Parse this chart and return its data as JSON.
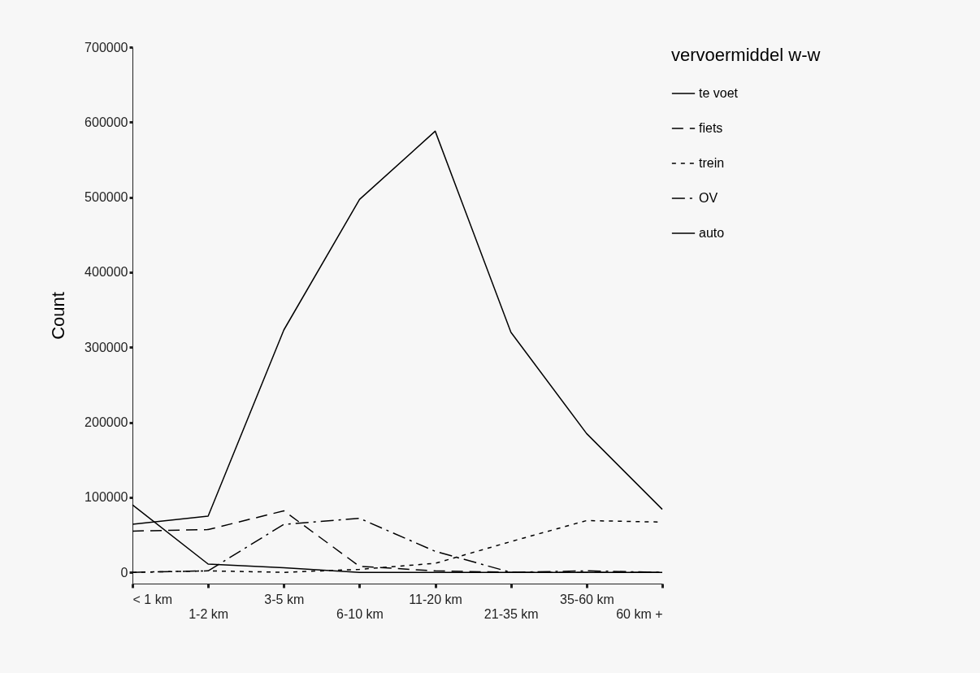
{
  "chart_data": {
    "type": "line",
    "ylabel": "Count",
    "legend_title": "vervoermiddel w-w",
    "legend": "right",
    "grid": false,
    "marker": "none",
    "categories": [
      "< 1 km",
      "1-2 km",
      "3-5 km",
      "6-10 km",
      "11-20 km",
      "21-35 km",
      "35-60 km",
      "60 km +"
    ],
    "ylim": [
      -15000,
      700000
    ],
    "yticks": [
      0,
      100000,
      200000,
      300000,
      400000,
      500000,
      600000,
      700000
    ],
    "series": [
      {
        "name": "te voet",
        "color": "#000000",
        "line_style": "solid",
        "values": [
          90000,
          11000,
          6000,
          0,
          0,
          0,
          0,
          0
        ]
      },
      {
        "name": "fiets",
        "color": "#000000",
        "line_style": "dashed",
        "values": [
          55000,
          57000,
          82000,
          8000,
          2000,
          0,
          0,
          0
        ]
      },
      {
        "name": "trein",
        "color": "#000000",
        "line_style": "dotted",
        "values": [
          0,
          2000,
          0,
          4000,
          12000,
          41000,
          69000,
          67000
        ]
      },
      {
        "name": "OV",
        "color": "#000000",
        "line_style": "dashdot",
        "values": [
          0,
          2000,
          64000,
          72000,
          28000,
          0,
          2000,
          0
        ]
      },
      {
        "name": "auto",
        "color": "#000000",
        "line_style": "solid",
        "values": [
          64000,
          75000,
          323000,
          497000,
          588000,
          320000,
          185000,
          84000
        ]
      }
    ]
  }
}
